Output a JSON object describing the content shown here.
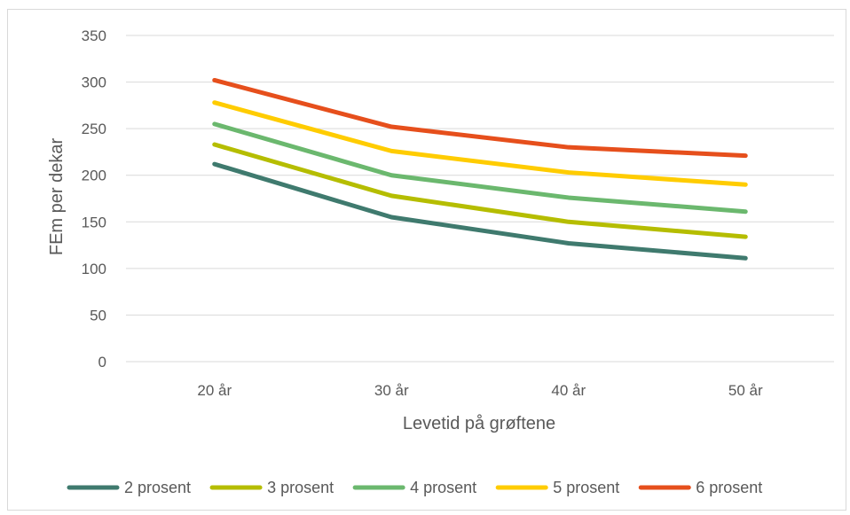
{
  "chart_data": {
    "type": "line",
    "title": "",
    "xlabel": "Levetid på grøftene",
    "ylabel": "FEm per dekar",
    "categories": [
      "20 år",
      "30 år",
      "40 år",
      "50 år"
    ],
    "ylim": [
      0,
      350
    ],
    "yticks": [
      0,
      50,
      100,
      150,
      200,
      250,
      300,
      350
    ],
    "grid": true,
    "legend_position": "bottom",
    "series": [
      {
        "name": "2 prosent",
        "color": "#3f7a6e",
        "values": [
          212,
          155,
          127,
          111
        ]
      },
      {
        "name": "3 prosent",
        "color": "#b5bd00",
        "values": [
          233,
          178,
          150,
          134
        ]
      },
      {
        "name": "4 prosent",
        "color": "#6bb86e",
        "values": [
          255,
          200,
          176,
          161
        ]
      },
      {
        "name": "5 prosent",
        "color": "#ffcc00",
        "values": [
          278,
          226,
          203,
          190
        ]
      },
      {
        "name": "6 prosent",
        "color": "#e64f1c",
        "values": [
          302,
          252,
          230,
          221
        ]
      }
    ]
  }
}
